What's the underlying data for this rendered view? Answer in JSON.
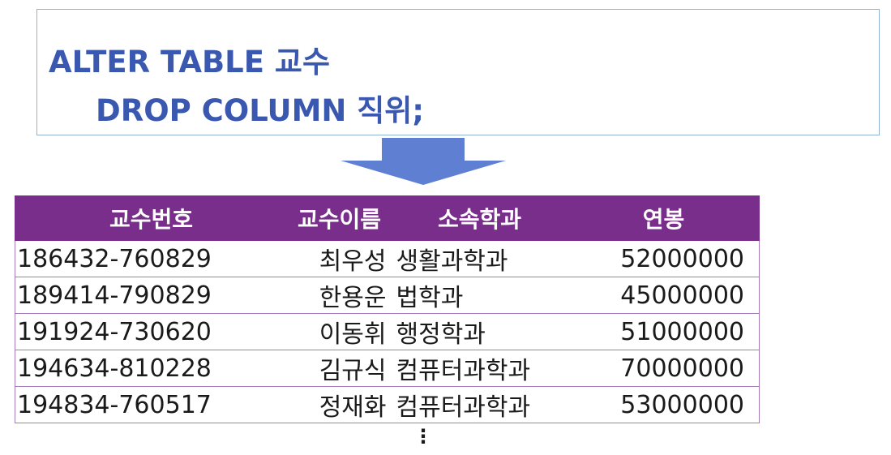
{
  "sql": {
    "line1": "ALTER TABLE 교수",
    "line2": "DROP COLUMN 직위;"
  },
  "arrow": {
    "icon": "down-arrow-icon",
    "color": "#5f7fd2"
  },
  "table": {
    "header_color": "#7a2e8c",
    "columns": [
      "교수번호",
      "교수이름",
      "소속학과",
      "연봉"
    ],
    "rows": [
      [
        "186432-760829",
        "최우성",
        "생활과학과",
        "52000000"
      ],
      [
        "189414-790829",
        "한용운",
        "법학과",
        "45000000"
      ],
      [
        "191924-730620",
        "이동휘",
        "행정학과",
        "51000000"
      ],
      [
        "194634-810228",
        "김규식",
        "컴퓨터과학과",
        "70000000"
      ],
      [
        "194834-760517",
        "정재화",
        "컴퓨터과학과",
        "53000000"
      ]
    ]
  },
  "continuation": "⋮"
}
